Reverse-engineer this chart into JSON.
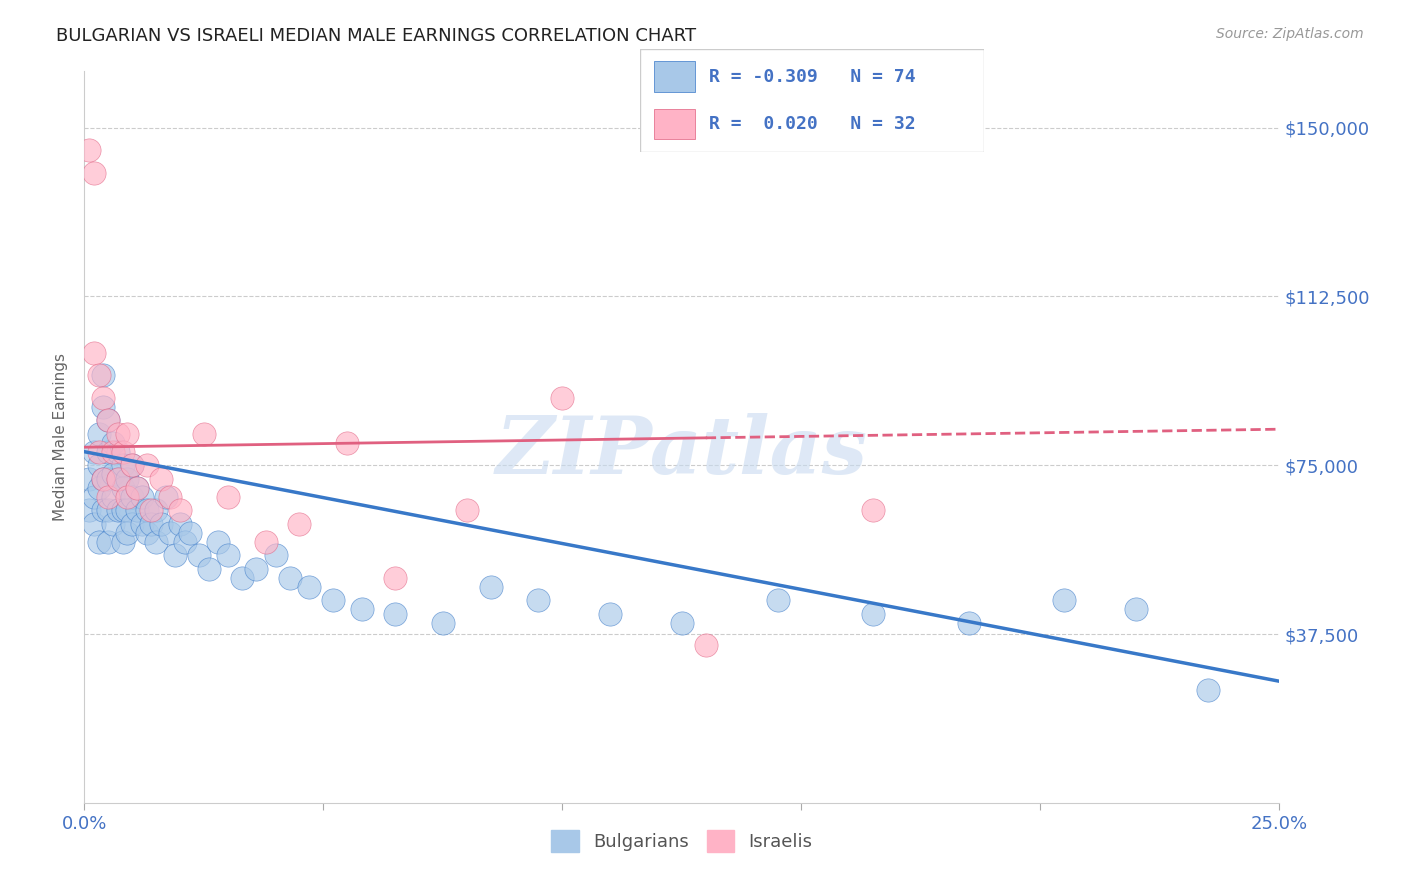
{
  "title": "BULGARIAN VS ISRAELI MEDIAN MALE EARNINGS CORRELATION CHART",
  "source": "Source: ZipAtlas.com",
  "ylabel": "Median Male Earnings",
  "xlim": [
    0.0,
    0.25
  ],
  "ylim": [
    0,
    162500
  ],
  "yticks": [
    0,
    37500,
    75000,
    112500,
    150000
  ],
  "ytick_labels": [
    "",
    "$37,500",
    "$75,000",
    "$112,500",
    "$150,000"
  ],
  "xticks": [
    0.0,
    0.05,
    0.1,
    0.15,
    0.2,
    0.25
  ],
  "xtick_labels": [
    "0.0%",
    "",
    "",
    "",
    "",
    "25.0%"
  ],
  "blue_R": -0.309,
  "blue_N": 74,
  "pink_R": 0.02,
  "pink_N": 32,
  "blue_color": "#a8c8e8",
  "pink_color": "#ffb3c6",
  "blue_line_color": "#3878c8",
  "pink_line_color": "#e06080",
  "legend_label_blue": "Bulgarians",
  "legend_label_pink": "Israelis",
  "title_color": "#222222",
  "axis_tick_color": "#4472c4",
  "watermark_color": "#c8daf0",
  "blue_line_y0": 78000,
  "blue_line_y1": 27000,
  "pink_line_y0": 79000,
  "pink_line_y1": 83000,
  "blue_x": [
    0.001,
    0.001,
    0.002,
    0.002,
    0.002,
    0.003,
    0.003,
    0.003,
    0.003,
    0.004,
    0.004,
    0.004,
    0.004,
    0.005,
    0.005,
    0.005,
    0.005,
    0.005,
    0.006,
    0.006,
    0.006,
    0.006,
    0.007,
    0.007,
    0.007,
    0.008,
    0.008,
    0.008,
    0.008,
    0.009,
    0.009,
    0.009,
    0.01,
    0.01,
    0.01,
    0.011,
    0.011,
    0.012,
    0.012,
    0.013,
    0.013,
    0.014,
    0.015,
    0.015,
    0.016,
    0.017,
    0.018,
    0.019,
    0.02,
    0.021,
    0.022,
    0.024,
    0.026,
    0.028,
    0.03,
    0.033,
    0.036,
    0.04,
    0.043,
    0.047,
    0.052,
    0.058,
    0.065,
    0.075,
    0.085,
    0.095,
    0.11,
    0.125,
    0.145,
    0.165,
    0.185,
    0.205,
    0.22,
    0.235
  ],
  "blue_y": [
    72000,
    65000,
    78000,
    68000,
    62000,
    75000,
    82000,
    70000,
    58000,
    88000,
    95000,
    72000,
    65000,
    85000,
    78000,
    72000,
    65000,
    58000,
    80000,
    73000,
    68000,
    62000,
    78000,
    72000,
    65000,
    75000,
    70000,
    65000,
    58000,
    72000,
    65000,
    60000,
    75000,
    68000,
    62000,
    70000,
    65000,
    68000,
    62000,
    65000,
    60000,
    62000,
    65000,
    58000,
    62000,
    68000,
    60000,
    55000,
    62000,
    58000,
    60000,
    55000,
    52000,
    58000,
    55000,
    50000,
    52000,
    55000,
    50000,
    48000,
    45000,
    43000,
    42000,
    40000,
    48000,
    45000,
    42000,
    40000,
    45000,
    42000,
    40000,
    45000,
    43000,
    25000
  ],
  "pink_x": [
    0.001,
    0.002,
    0.002,
    0.003,
    0.003,
    0.004,
    0.004,
    0.005,
    0.005,
    0.006,
    0.007,
    0.007,
    0.008,
    0.009,
    0.009,
    0.01,
    0.011,
    0.013,
    0.014,
    0.016,
    0.018,
    0.02,
    0.025,
    0.03,
    0.038,
    0.045,
    0.055,
    0.065,
    0.08,
    0.1,
    0.13,
    0.165
  ],
  "pink_y": [
    145000,
    140000,
    100000,
    95000,
    78000,
    90000,
    72000,
    85000,
    68000,
    78000,
    82000,
    72000,
    78000,
    82000,
    68000,
    75000,
    70000,
    75000,
    65000,
    72000,
    68000,
    65000,
    82000,
    68000,
    58000,
    62000,
    80000,
    50000,
    65000,
    90000,
    35000,
    65000
  ]
}
